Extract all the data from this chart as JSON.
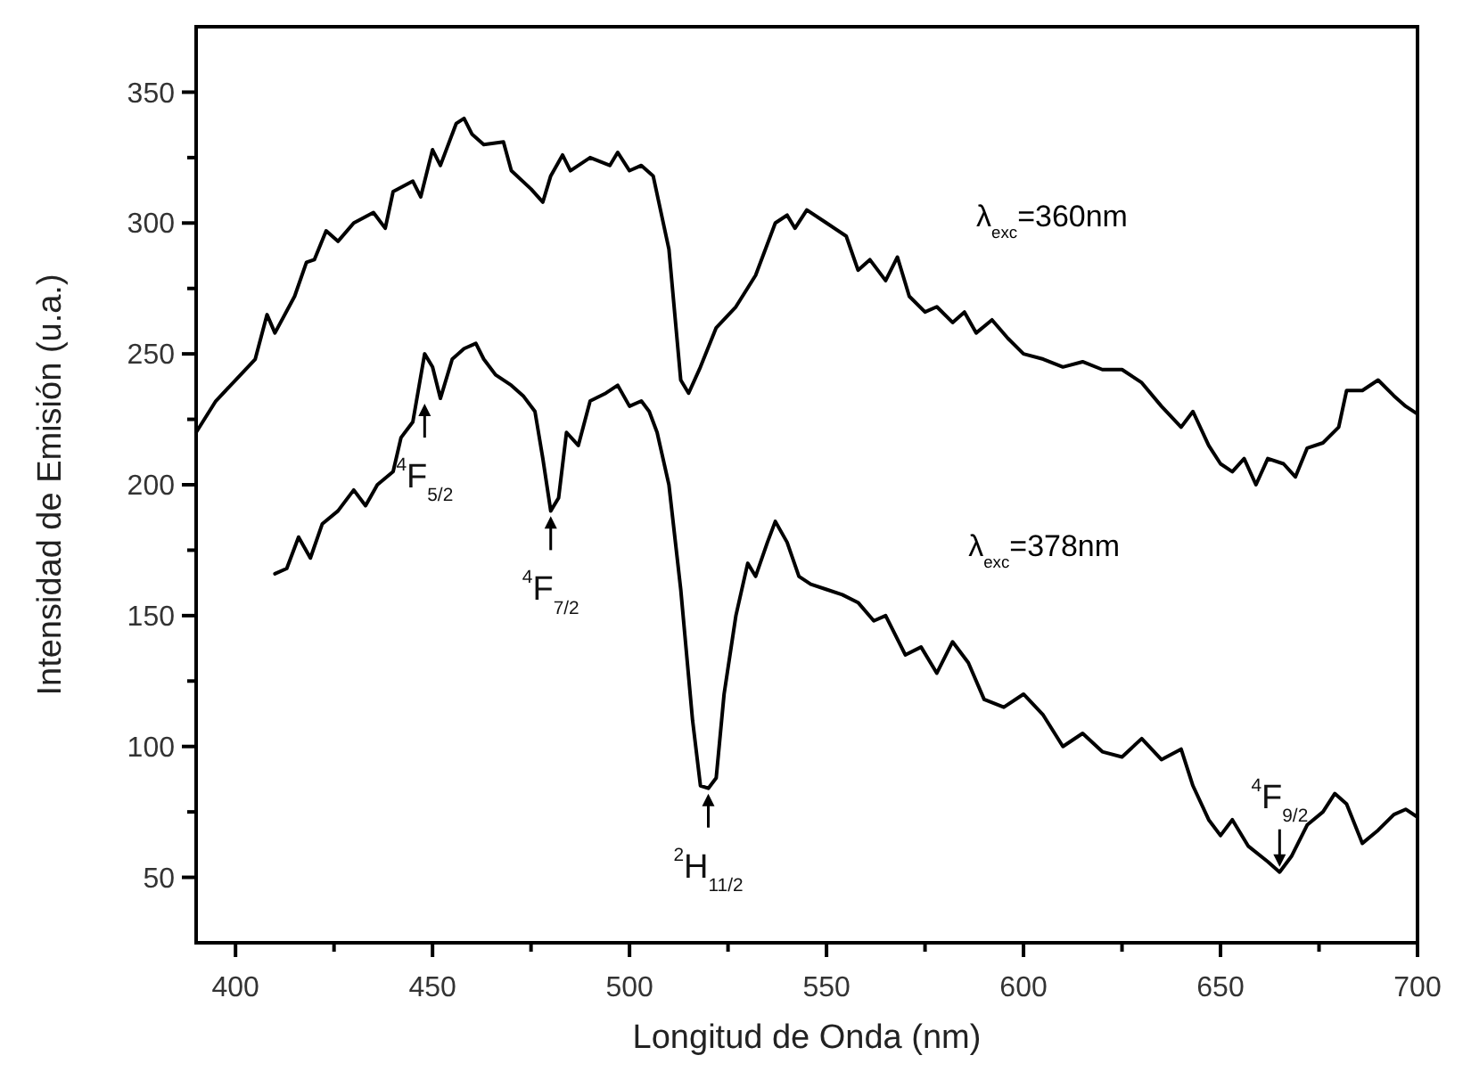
{
  "chart_data": {
    "type": "line",
    "xlabel": "Longitud de Onda (nm)",
    "ylabel": "Intensidad de Emisión (u.a.)",
    "xlim": [
      390,
      700
    ],
    "ylim": [
      25,
      375
    ],
    "xticks": [
      400,
      {
        "value": 425,
        "label": null
      },
      450,
      {
        "value": 475,
        "label": null
      },
      500,
      {
        "value": 525,
        "label": null
      },
      550,
      {
        "value": 575,
        "label": null
      },
      600,
      {
        "value": 625,
        "label": null
      },
      650,
      {
        "value": 675,
        "label": null
      },
      700
    ],
    "yticks": [
      50,
      {
        "value": 75,
        "label": null
      },
      100,
      {
        "value": 125,
        "label": null
      },
      150,
      {
        "value": 175,
        "label": null
      },
      200,
      {
        "value": 225,
        "label": null
      },
      250,
      {
        "value": 275,
        "label": null
      },
      300,
      {
        "value": 325,
        "label": null
      },
      350
    ],
    "grid": false,
    "marker": "none",
    "line_style": "solid",
    "series": [
      {
        "name": "λ$_{exc}$=360nm",
        "color": "#000000",
        "x": [
          390,
          395,
          400,
          405,
          408,
          410,
          415,
          418,
          420,
          423,
          426,
          430,
          435,
          438,
          440,
          445,
          447,
          450,
          452,
          456,
          458,
          460,
          463,
          468,
          470,
          475,
          478,
          480,
          483,
          485,
          490,
          495,
          497,
          500,
          503,
          506,
          510,
          513,
          515,
          518,
          522,
          527,
          532,
          537,
          540,
          542,
          545,
          550,
          555,
          558,
          561,
          565,
          568,
          571,
          575,
          578,
          582,
          585,
          588,
          592,
          596,
          600,
          605,
          610,
          615,
          620,
          625,
          630,
          635,
          640,
          643,
          647,
          650,
          653,
          656,
          659,
          662,
          666,
          669,
          672,
          676,
          680,
          682,
          686,
          690,
          694,
          697,
          700
        ],
        "values": [
          220,
          232,
          240,
          248,
          265,
          258,
          272,
          285,
          286,
          297,
          293,
          300,
          304,
          298,
          312,
          316,
          310,
          328,
          322,
          338,
          340,
          334,
          330,
          331,
          320,
          313,
          308,
          318,
          326,
          320,
          325,
          322,
          327,
          320,
          322,
          318,
          290,
          240,
          235,
          245,
          260,
          268,
          280,
          300,
          303,
          298,
          305,
          300,
          295,
          282,
          286,
          278,
          287,
          272,
          266,
          268,
          262,
          266,
          258,
          263,
          256,
          250,
          248,
          245,
          247,
          244,
          244,
          239,
          230,
          222,
          228,
          215,
          208,
          205,
          210,
          200,
          210,
          208,
          203,
          214,
          216,
          222,
          236,
          236,
          240,
          234,
          230,
          227
        ]
      },
      {
        "name": "λ$_{exc}$=378nm",
        "color": "#000000",
        "x": [
          410,
          413,
          416,
          419,
          422,
          426,
          430,
          433,
          436,
          440,
          442,
          445,
          448,
          450,
          452,
          455,
          458,
          461,
          463,
          466,
          470,
          473,
          476,
          478,
          480,
          482,
          484,
          487,
          490,
          494,
          497,
          500,
          503,
          505,
          507,
          510,
          513,
          516,
          518,
          520,
          522,
          524,
          527,
          530,
          532,
          535,
          537,
          540,
          543,
          546,
          550,
          554,
          558,
          562,
          565,
          570,
          574,
          578,
          582,
          586,
          590,
          595,
          600,
          605,
          610,
          615,
          620,
          625,
          630,
          635,
          640,
          643,
          647,
          650,
          653,
          657,
          662,
          665,
          668,
          672,
          676,
          679,
          682,
          686,
          690,
          694,
          697,
          700
        ],
        "values": [
          166,
          168,
          180,
          172,
          185,
          190,
          198,
          192,
          200,
          205,
          218,
          224,
          250,
          245,
          233,
          248,
          252,
          254,
          248,
          242,
          238,
          234,
          228,
          210,
          190,
          195,
          220,
          215,
          232,
          235,
          238,
          230,
          232,
          228,
          220,
          200,
          160,
          110,
          85,
          84,
          88,
          120,
          150,
          170,
          165,
          178,
          186,
          178,
          165,
          162,
          160,
          158,
          155,
          148,
          150,
          135,
          138,
          128,
          140,
          132,
          118,
          115,
          120,
          112,
          100,
          105,
          98,
          96,
          103,
          95,
          99,
          85,
          72,
          66,
          72,
          62,
          56,
          52,
          58,
          70,
          75,
          82,
          78,
          63,
          68,
          74,
          76,
          73
        ]
      }
    ],
    "annotations": [
      {
        "text": "$^{4}$F$_{5/2}$",
        "x": 448,
        "y": 233
      },
      {
        "text": "$^{4}$F$_{7/2}$",
        "x": 480,
        "y": 190
      },
      {
        "text": "$^{2}$H$_{11/2}$",
        "x": 520,
        "y": 84
      },
      {
        "text": "$^{4}$F$_{9/2}$",
        "x": 665,
        "y": 52
      }
    ]
  }
}
